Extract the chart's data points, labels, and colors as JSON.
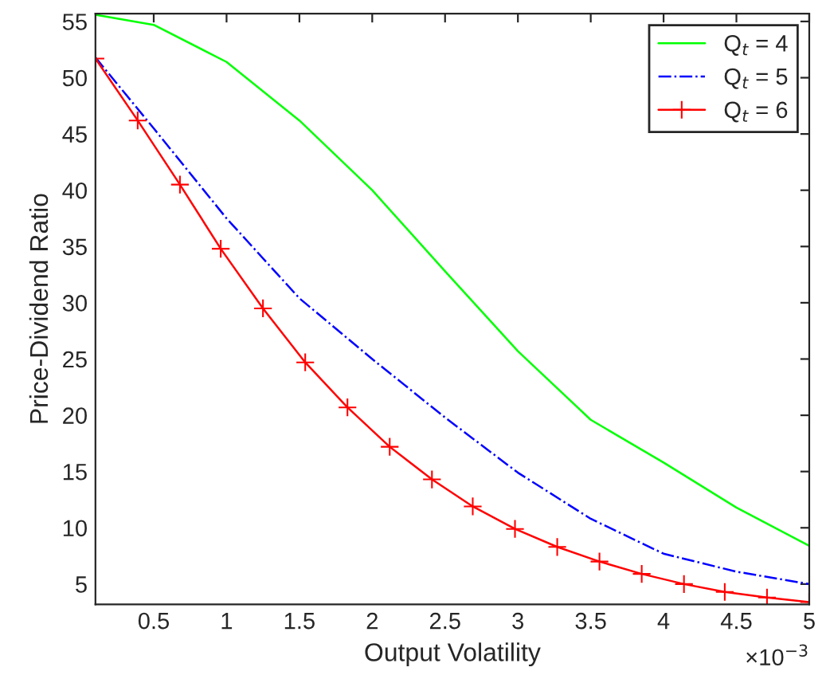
{
  "chart_data": {
    "type": "line",
    "xlabel": "Output Volatility",
    "ylabel": "Price-Dividend Ratio",
    "xlim": [
      0.1,
      5
    ],
    "xticks": [
      0.5,
      1,
      1.5,
      2,
      2.5,
      3,
      3.5,
      4,
      4.5,
      5
    ],
    "ylim": [
      3.2,
      55.7
    ],
    "yticks": [
      5,
      10,
      15,
      20,
      25,
      30,
      35,
      40,
      45,
      50,
      55
    ],
    "annotations": [
      "×10$^{−3}$"
    ],
    "legend": "top right",
    "grid": false,
    "series": [
      {
        "name": "Q$_{t}$ = 4",
        "color": "#00ff00",
        "line_style": "solid",
        "marker": "none",
        "x": [
          0.1,
          0.5,
          1,
          1.5,
          2,
          2.5,
          3,
          3.5,
          4,
          4.5,
          5
        ],
        "values": [
          55.6,
          54.7,
          51.4,
          46.2,
          40.0,
          32.8,
          25.7,
          19.6,
          15.8,
          11.8,
          8.4
        ]
      },
      {
        "name": "Q$_{t}$ = 5",
        "color": "#0000ff",
        "line_style": "dashdot",
        "marker": "none",
        "x": [
          0.1,
          0.5,
          1,
          1.5,
          2,
          2.5,
          3,
          3.5,
          4,
          4.5,
          5
        ],
        "values": [
          51.8,
          45.5,
          37.5,
          30.4,
          25.0,
          19.8,
          14.9,
          10.8,
          7.7,
          6.1,
          5.0
        ]
      },
      {
        "name": "Q$_{t}$ = 6",
        "color": "#ff0000",
        "line_style": "solid",
        "marker": "cross",
        "x": [
          0.1,
          0.39,
          0.68,
          0.96,
          1.25,
          1.54,
          1.83,
          2.12,
          2.41,
          2.69,
          2.98,
          3.27,
          3.56,
          3.85,
          4.14,
          4.42,
          4.71,
          5.0
        ],
        "values": [
          51.7,
          46.2,
          40.5,
          34.8,
          29.5,
          24.7,
          20.7,
          17.2,
          14.3,
          11.9,
          9.9,
          8.3,
          7.0,
          5.9,
          5.0,
          4.3,
          3.8,
          3.4
        ]
      }
    ]
  }
}
